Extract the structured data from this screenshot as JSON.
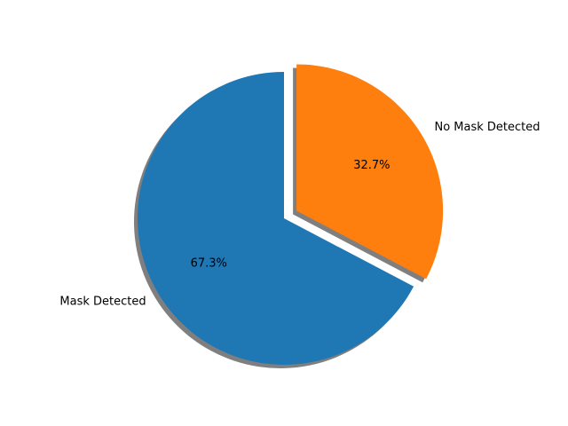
{
  "chart_data": {
    "type": "pie",
    "title": "",
    "start_angle_deg": 90,
    "direction": "counterclockwise",
    "shadow": true,
    "explode": [
      0,
      0.1
    ],
    "slices": [
      {
        "label": "Mask Detected",
        "value": 67.3,
        "pct_label": "67.3%",
        "color": "#1f77b4"
      },
      {
        "label": "No Mask Detected",
        "value": 32.7,
        "pct_label": "32.7%",
        "color": "#ff7f0e"
      }
    ]
  }
}
